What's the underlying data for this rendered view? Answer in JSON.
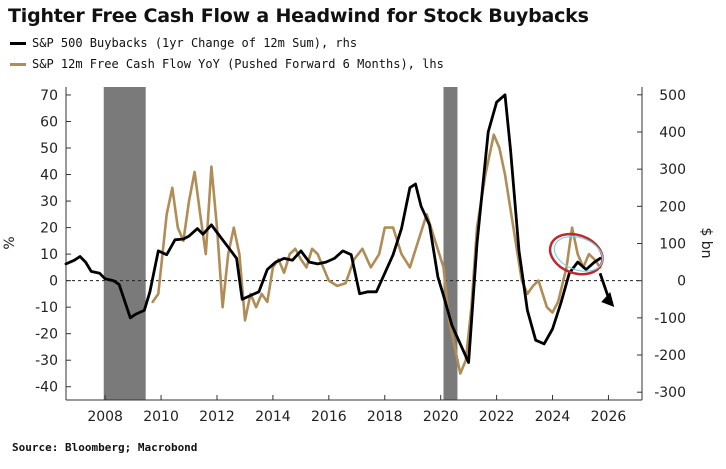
{
  "title": "Tighter Free Cash Flow a Headwind for Stock Buybacks",
  "source": "Source: Bloomberg; Macrobond",
  "colors": {
    "black_series": "#000000",
    "gold_series": "#b08d57",
    "recession_shade": "#7a7a7a",
    "circle": "#c0282d"
  },
  "chart_data": {
    "type": "line",
    "title": "Tighter Free Cash Flow a Headwind for Stock Buybacks",
    "ylabel_left": "%",
    "ylabel_right": "$ bn",
    "x_ticks": [
      "2008",
      "2010",
      "2012",
      "2014",
      "2016",
      "2018",
      "2020",
      "2022",
      "2024",
      "2026"
    ],
    "xlim": [
      2006.6,
      2027.2
    ],
    "left_axis": {
      "ylim": [
        -45,
        73
      ],
      "ticks": [
        70,
        60,
        50,
        40,
        30,
        20,
        10,
        0,
        -10,
        -20,
        -30,
        -40
      ]
    },
    "right_axis": {
      "ylim": [
        -321,
        521
      ],
      "ticks": [
        500,
        400,
        300,
        200,
        100,
        0,
        -100,
        -200,
        -300
      ]
    },
    "recessions": [
      [
        2007.95,
        2009.45
      ],
      [
        2020.1,
        2020.6
      ]
    ],
    "zero_line": "dashed",
    "series": [
      {
        "name": "S&P 500 Buybacks (1yr Change of 12m Sum), rhs",
        "axis": "right",
        "color": "#000000",
        "x": [
          2006.6,
          2006.9,
          2007.1,
          2007.3,
          2007.5,
          2007.8,
          2008.0,
          2008.3,
          2008.5,
          2008.9,
          2009.1,
          2009.4,
          2009.6,
          2009.9,
          2010.2,
          2010.5,
          2010.8,
          2011.0,
          2011.3,
          2011.5,
          2011.8,
          2012.1,
          2012.4,
          2012.7,
          2012.9,
          2013.2,
          2013.5,
          2013.8,
          2014.1,
          2014.4,
          2014.7,
          2015.0,
          2015.3,
          2015.6,
          2015.9,
          2016.2,
          2016.5,
          2016.8,
          2017.1,
          2017.4,
          2017.7,
          2018.0,
          2018.3,
          2018.6,
          2018.9,
          2019.1,
          2019.3,
          2019.6,
          2019.9,
          2020.1,
          2020.4,
          2020.7,
          2021.0,
          2021.3,
          2021.7,
          2022.0,
          2022.3,
          2022.5,
          2022.8,
          2023.1,
          2023.4,
          2023.7,
          2024.0,
          2024.3,
          2024.6,
          2024.9,
          2025.2,
          2025.5,
          2025.7
        ],
        "y": [
          45,
          55,
          65,
          50,
          25,
          20,
          5,
          0,
          -10,
          -100,
          -90,
          -80,
          -30,
          80,
          70,
          110,
          112,
          120,
          140,
          125,
          150,
          120,
          90,
          60,
          -50,
          -40,
          -30,
          30,
          50,
          60,
          55,
          80,
          50,
          45,
          50,
          60,
          80,
          70,
          -35,
          -30,
          -30,
          20,
          70,
          140,
          250,
          260,
          200,
          150,
          10,
          -40,
          -120,
          -170,
          -220,
          100,
          400,
          480,
          500,
          350,
          80,
          -80,
          -160,
          -170,
          -130,
          -60,
          20,
          50,
          30,
          50,
          60
        ]
      },
      {
        "name": "S&P 12m Free Cash Flow YoY (Pushed Forward 6 Months), lhs",
        "axis": "left",
        "color": "#b08d57",
        "x": [
          2009.7,
          2009.9,
          2010.0,
          2010.2,
          2010.4,
          2010.6,
          2010.8,
          2011.0,
          2011.2,
          2011.4,
          2011.6,
          2011.8,
          2012.0,
          2012.2,
          2012.4,
          2012.6,
          2012.8,
          2013.0,
          2013.2,
          2013.4,
          2013.6,
          2013.8,
          2014.0,
          2014.2,
          2014.4,
          2014.6,
          2014.8,
          2015.0,
          2015.2,
          2015.4,
          2015.6,
          2015.8,
          2016.0,
          2016.3,
          2016.6,
          2016.9,
          2017.2,
          2017.5,
          2017.8,
          2018.0,
          2018.3,
          2018.6,
          2018.9,
          2019.2,
          2019.5,
          2019.8,
          2020.1,
          2020.3,
          2020.5,
          2020.7,
          2020.9,
          2021.1,
          2021.3,
          2021.6,
          2021.9,
          2022.1,
          2022.3,
          2022.6,
          2022.9,
          2023.1,
          2023.3,
          2023.5,
          2023.8,
          2024.0,
          2024.2,
          2024.5,
          2024.7,
          2024.9,
          2025.1,
          2025.3,
          2025.5,
          2025.7
        ],
        "y": [
          -8,
          -5,
          5,
          25,
          35,
          20,
          15,
          30,
          41,
          25,
          10,
          43,
          20,
          -10,
          10,
          20,
          10,
          -15,
          -5,
          -10,
          -5,
          -8,
          5,
          8,
          3,
          10,
          12,
          8,
          5,
          12,
          10,
          5,
          0,
          -2,
          -1,
          8,
          12,
          5,
          10,
          20,
          20,
          10,
          5,
          15,
          25,
          15,
          5,
          -15,
          -25,
          -35,
          -30,
          -10,
          20,
          40,
          55,
          50,
          40,
          20,
          0,
          -5,
          -2,
          0,
          -10,
          -12,
          -8,
          5,
          20,
          10,
          5,
          10,
          8,
          5
        ]
      }
    ],
    "annotations": [
      "red ellipse around late-2024/2025 peaks",
      "downward arrow continuing black series"
    ]
  }
}
